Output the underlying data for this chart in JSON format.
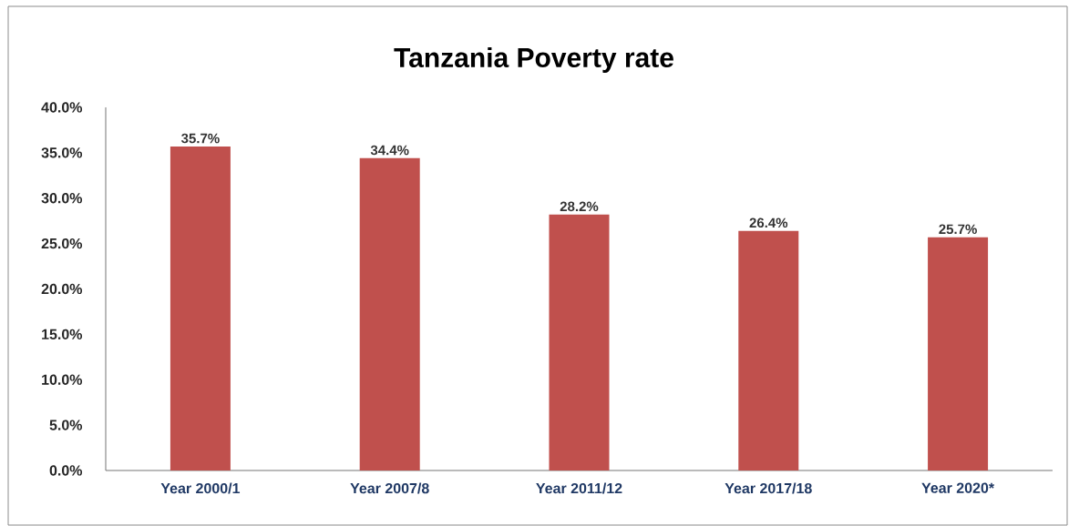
{
  "chart_data": {
    "type": "bar",
    "title": "Tanzania Poverty rate",
    "categories": [
      "Year 2000/1",
      "Year 2007/8",
      "Year 2011/12",
      "Year 2017/18",
      "Year 2020*"
    ],
    "values": [
      35.7,
      34.4,
      28.2,
      26.4,
      25.7
    ],
    "value_labels": [
      "35.7%",
      "34.4%",
      "28.2%",
      "26.4%",
      "25.7%"
    ],
    "color": "#c0504d",
    "ylim": [
      0,
      40
    ],
    "yticks": [
      {
        "value": 0,
        "label": "0.0%"
      },
      {
        "value": 5,
        "label": "5.0%"
      },
      {
        "value": 10,
        "label": "10.0%"
      },
      {
        "value": 15,
        "label": "15.0%"
      },
      {
        "value": 20,
        "label": "20.0%"
      },
      {
        "value": 25,
        "label": "25.0%"
      },
      {
        "value": 30,
        "label": "30.0%"
      },
      {
        "value": 35,
        "label": "35.0%"
      },
      {
        "value": 40,
        "label": "40.0%"
      }
    ],
    "grid": false
  }
}
